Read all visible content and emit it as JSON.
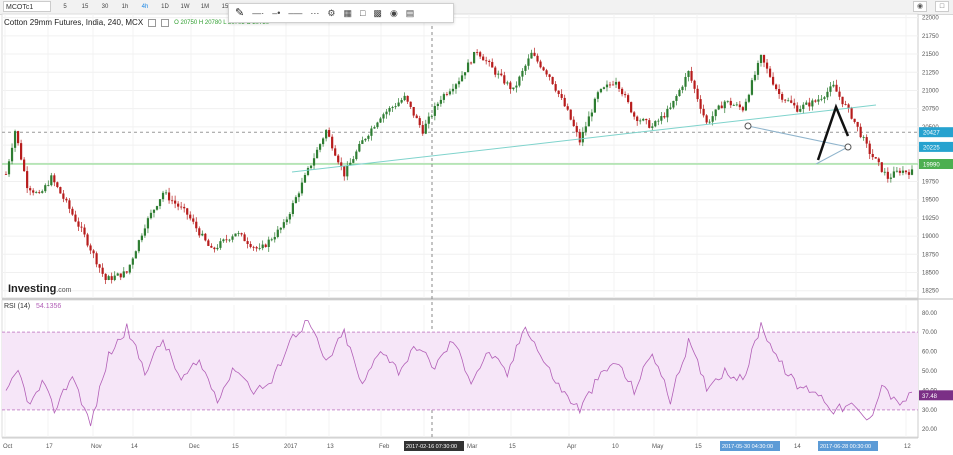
{
  "toolbar": {
    "symbol": "MCOTc1",
    "intervals": [
      "5",
      "15",
      "30",
      "1h",
      "4h",
      "1D",
      "1W",
      "1M",
      "15"
    ],
    "active_interval": "4h",
    "right_icons": [
      "camera-icon",
      "window-icon"
    ]
  },
  "drawing_toolbar": {
    "tools": [
      "pen-icon",
      "line-style-icon",
      "line-width-icon",
      "line-dash-icon",
      "color-icon",
      "gear-icon",
      "template-icon",
      "square-icon",
      "lock-icon",
      "eye-icon",
      "trash-icon"
    ]
  },
  "legend": {
    "title": "Cotton 29mm Futures, India, 240, MCX",
    "ohlc": "O 20750  H 20780  L 20705  C 20750"
  },
  "rsi_legend": {
    "label": "RSI (14)",
    "value": "54.1356"
  },
  "logo": {
    "brand": "Investing",
    "suffix": ".com"
  },
  "colors": {
    "up": "#2e7d32",
    "down": "#b71c1c",
    "rsi": "#b25fb7",
    "rsi_band": "#f6e6f8",
    "trendline": "#7fd3cc",
    "support": "#7ed67e",
    "price_tag": "#26a2cf",
    "support_tag": "#4caf50"
  },
  "chart_data": [
    {
      "type": "candlestick",
      "title": "Cotton 29mm Futures, India, 240, MCX",
      "y_ticks": [
        22000,
        21750,
        21500,
        21250,
        21000,
        20750,
        20500,
        20250,
        20000,
        19750,
        19500,
        19250,
        19000,
        18750,
        18500,
        18250
      ],
      "ylim": [
        18150,
        22050
      ],
      "price_labels": [
        {
          "value": 20427,
          "label": "20427"
        },
        {
          "value": 20225,
          "label": "20225"
        },
        {
          "value": 19990,
          "label": "19990"
        }
      ],
      "x_ticks": [
        "Oct",
        "17",
        "Nov",
        "14",
        "Dec",
        "15",
        "2017",
        "13",
        "Feb",
        "14",
        "Mar",
        "15",
        "Apr",
        "10",
        "May",
        "15",
        "14",
        "12"
      ],
      "x_highlight_labels": [
        "2017-02-16 07:30:00",
        "2017-05-30 04:30:00",
        "2017-06-28 00:30:00"
      ],
      "keypoints": [
        [
          0,
          19850
        ],
        [
          3,
          20450
        ],
        [
          7,
          19700
        ],
        [
          11,
          19550
        ],
        [
          15,
          19800
        ],
        [
          20,
          19450
        ],
        [
          26,
          19000
        ],
        [
          33,
          18400
        ],
        [
          40,
          18500
        ],
        [
          46,
          19150
        ],
        [
          52,
          19600
        ],
        [
          60,
          19300
        ],
        [
          68,
          18800
        ],
        [
          76,
          19050
        ],
        [
          84,
          18800
        ],
        [
          92,
          19150
        ],
        [
          100,
          19900
        ],
        [
          106,
          20450
        ],
        [
          112,
          19850
        ],
        [
          118,
          20300
        ],
        [
          124,
          20650
        ],
        [
          132,
          20900
        ],
        [
          138,
          20450
        ],
        [
          144,
          20900
        ],
        [
          150,
          21150
        ],
        [
          156,
          21550
        ],
        [
          162,
          21250
        ],
        [
          168,
          21000
        ],
        [
          174,
          21500
        ],
        [
          180,
          21200
        ],
        [
          186,
          20700
        ],
        [
          190,
          20300
        ],
        [
          196,
          20950
        ],
        [
          202,
          21150
        ],
        [
          208,
          20650
        ],
        [
          214,
          20500
        ],
        [
          220,
          20750
        ],
        [
          226,
          21250
        ],
        [
          232,
          20550
        ],
        [
          238,
          20850
        ],
        [
          244,
          20750
        ],
        [
          250,
          21450
        ],
        [
          256,
          20950
        ],
        [
          262,
          20750
        ],
        [
          268,
          20850
        ],
        [
          274,
          21050
        ],
        [
          280,
          20650
        ],
        [
          286,
          20150
        ],
        [
          292,
          19800
        ],
        [
          296,
          19900
        ],
        [
          300,
          19880
        ]
      ],
      "n_candles": 301
    },
    {
      "type": "line",
      "series": [
        {
          "name": "RSI (14)"
        }
      ],
      "y_ticks": [
        80,
        70,
        60,
        50,
        40,
        30,
        20
      ],
      "ylim": [
        16,
        84
      ],
      "bands": [
        30,
        70
      ],
      "current": 37.48,
      "keypoints": [
        [
          0,
          38
        ],
        [
          4,
          50
        ],
        [
          8,
          32
        ],
        [
          12,
          44
        ],
        [
          16,
          30
        ],
        [
          22,
          48
        ],
        [
          28,
          22
        ],
        [
          34,
          58
        ],
        [
          40,
          72
        ],
        [
          46,
          50
        ],
        [
          52,
          66
        ],
        [
          58,
          45
        ],
        [
          64,
          55
        ],
        [
          70,
          36
        ],
        [
          76,
          52
        ],
        [
          82,
          40
        ],
        [
          88,
          44
        ],
        [
          94,
          66
        ],
        [
          100,
          76
        ],
        [
          106,
          54
        ],
        [
          112,
          70
        ],
        [
          118,
          42
        ],
        [
          124,
          62
        ],
        [
          130,
          50
        ],
        [
          136,
          63
        ],
        [
          142,
          52
        ],
        [
          148,
          66
        ],
        [
          154,
          45
        ],
        [
          160,
          60
        ],
        [
          166,
          48
        ],
        [
          172,
          74
        ],
        [
          178,
          55
        ],
        [
          184,
          40
        ],
        [
          190,
          30
        ],
        [
          196,
          46
        ],
        [
          202,
          55
        ],
        [
          208,
          40
        ],
        [
          214,
          60
        ],
        [
          220,
          35
        ],
        [
          226,
          65
        ],
        [
          232,
          42
        ],
        [
          238,
          50
        ],
        [
          244,
          45
        ],
        [
          250,
          74
        ],
        [
          256,
          55
        ],
        [
          262,
          42
        ],
        [
          268,
          40
        ],
        [
          274,
          30
        ],
        [
          280,
          32
        ],
        [
          286,
          24
        ],
        [
          290,
          44
        ],
        [
          295,
          33
        ],
        [
          300,
          37.48
        ]
      ]
    }
  ]
}
